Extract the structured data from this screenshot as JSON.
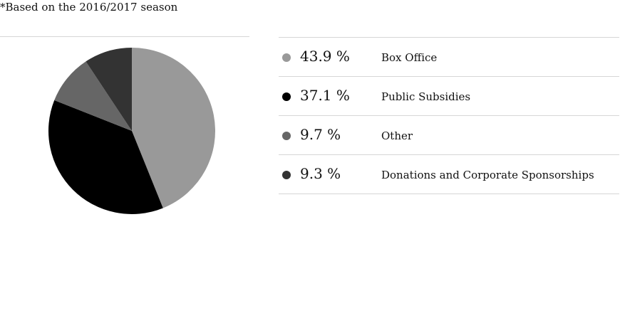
{
  "note": "*Based on the 2016/2017 season",
  "chart_data": {
    "type": "pie",
    "unit": "%",
    "slices": [
      {
        "label": "Box Office",
        "value": 43.9,
        "value_text": "43.9 %",
        "color": "#999999"
      },
      {
        "label": "Public Subsidies",
        "value": 37.1,
        "value_text": "37.1 %",
        "color": "#000000"
      },
      {
        "label": "Other",
        "value": 9.7,
        "value_text": "9.7 %",
        "color": "#666666"
      },
      {
        "label": "Donations and Corporate Sponsorships",
        "value": 9.3,
        "value_text": "9.3 %",
        "color": "#333333"
      }
    ],
    "legend_position": "right"
  }
}
